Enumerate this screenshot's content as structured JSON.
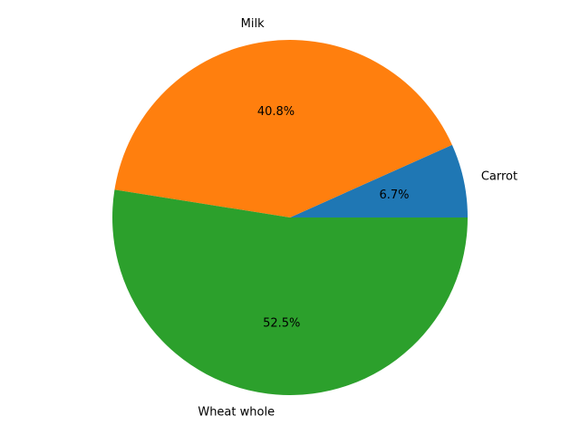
{
  "chart_data": {
    "type": "pie",
    "title": "",
    "categories": [
      "Carrot",
      "Milk",
      "Wheat whole"
    ],
    "values": [
      6.7,
      40.8,
      52.5
    ],
    "percent_labels": [
      "6.7%",
      "40.8%",
      "52.5%"
    ],
    "colors": [
      "#1f77b4",
      "#ff7f0e",
      "#2ca02c"
    ],
    "start_angle_deg": 0,
    "direction": "counterclockwise",
    "legend": "none"
  }
}
